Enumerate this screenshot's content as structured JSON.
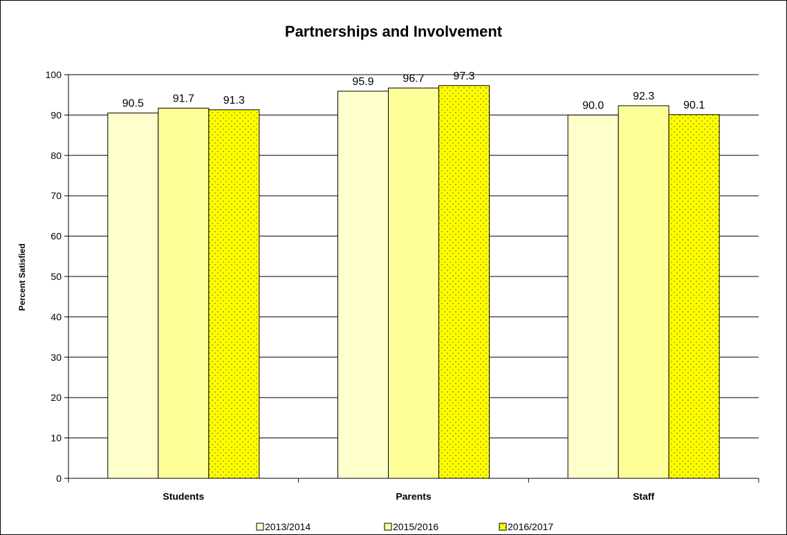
{
  "chart_data": {
    "type": "bar",
    "title": "Partnerships and Involvement",
    "xlabel": "",
    "ylabel": "Percent Satisfied",
    "ylim": [
      0,
      100
    ],
    "ytick_step": 10,
    "yticks": [
      "0",
      "10",
      "20",
      "30",
      "40",
      "50",
      "60",
      "70",
      "80",
      "90",
      "100"
    ],
    "categories": [
      "Students",
      "Parents",
      "Staff"
    ],
    "series": [
      {
        "name": "2013/2014",
        "values": [
          90.5,
          95.9,
          90.0
        ],
        "value_labels": [
          "90.5",
          "95.9",
          "90.0"
        ],
        "color": "#FFFFCC",
        "pattern": "none"
      },
      {
        "name": "2015/2016",
        "values": [
          91.7,
          96.7,
          92.3
        ],
        "value_labels": [
          "91.7",
          "96.7",
          "92.3"
        ],
        "color": "#FFFF99",
        "pattern": "none"
      },
      {
        "name": "2016/2017",
        "values": [
          91.3,
          97.3,
          90.1
        ],
        "value_labels": [
          "91.3",
          "97.3",
          "90.1"
        ],
        "color": "#FFFF00",
        "pattern": "dots"
      }
    ],
    "grid": true,
    "legend_position": "bottom"
  }
}
